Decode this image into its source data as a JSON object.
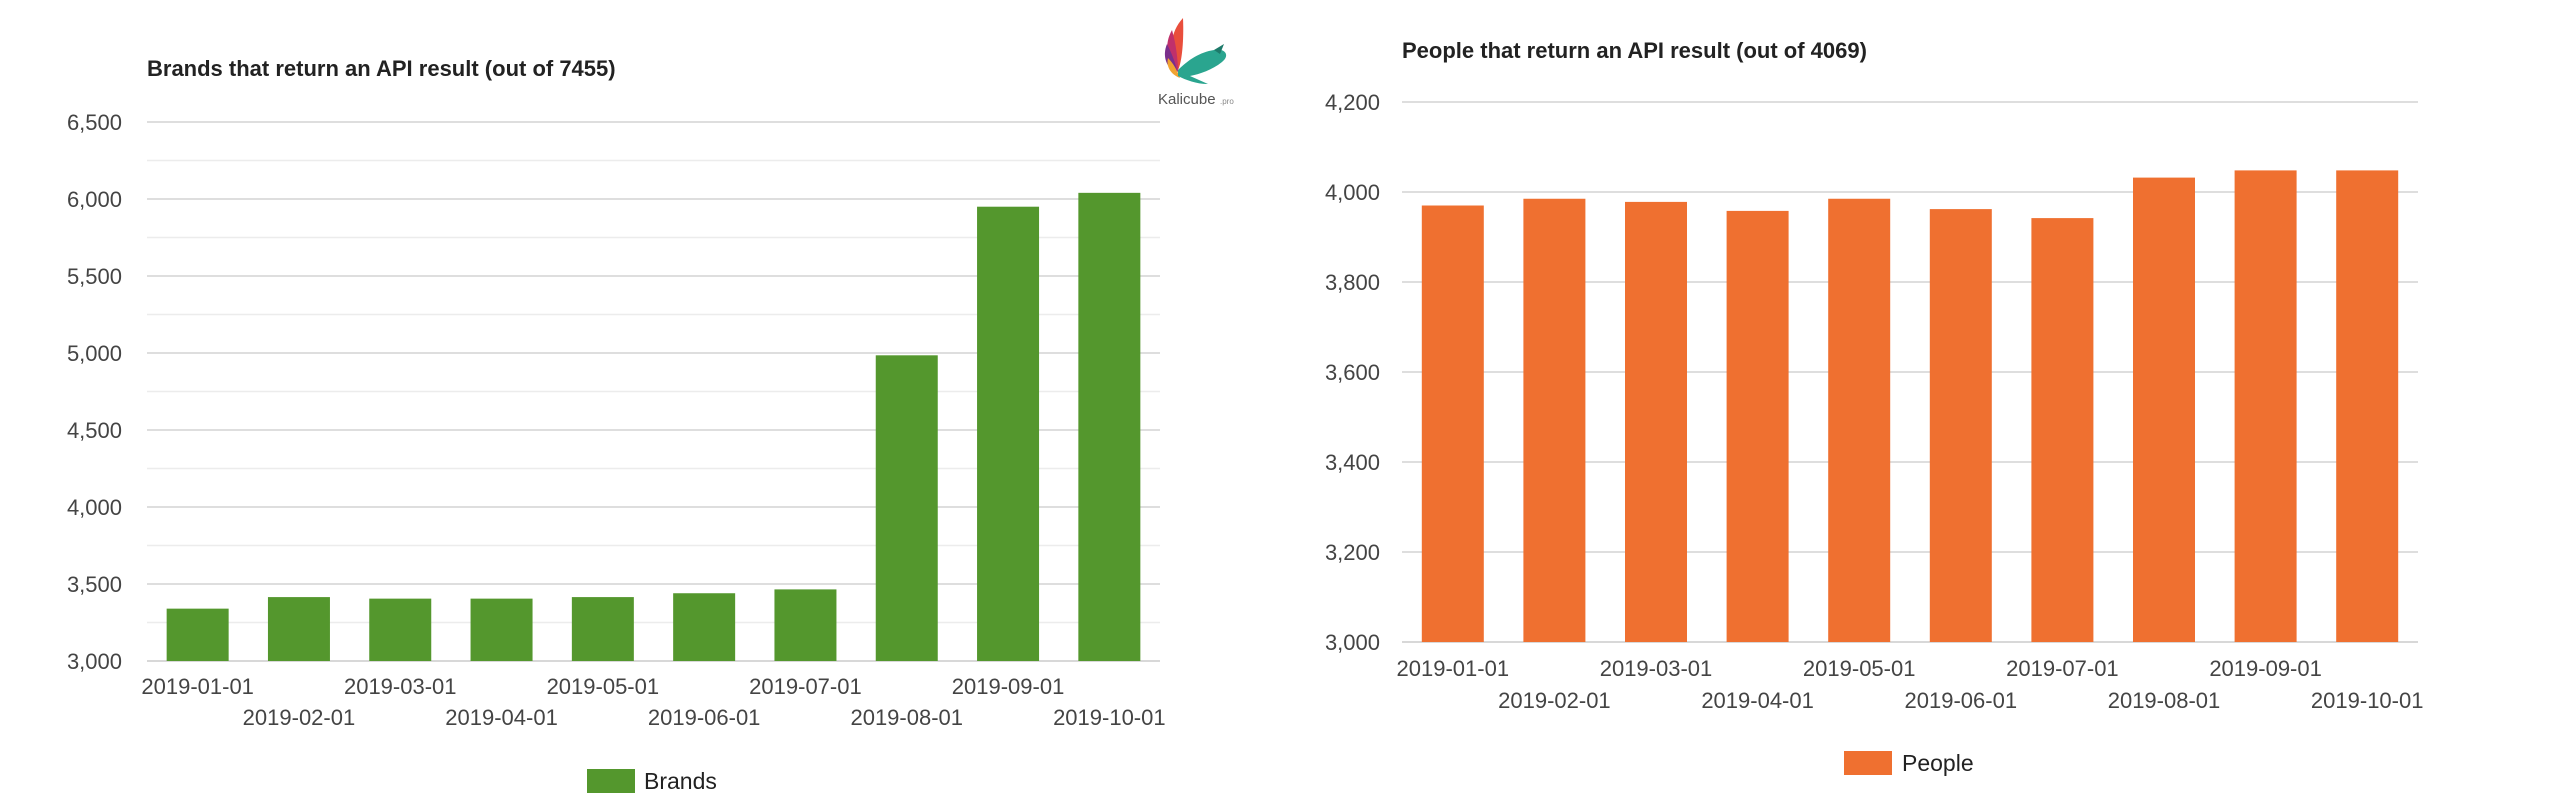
{
  "logo": {
    "name": "Kalicube",
    "suffix": ".pro"
  },
  "chart_data": [
    {
      "type": "bar",
      "title": "Brands that return an API result (out of 7455)",
      "xlabel": "",
      "ylabel": "",
      "categories": [
        "2019-01-01",
        "2019-02-01",
        "2019-03-01",
        "2019-04-01",
        "2019-05-01",
        "2019-06-01",
        "2019-07-01",
        "2019-08-01",
        "2019-09-01",
        "2019-10-01"
      ],
      "series": [
        {
          "name": "Brands",
          "color": "#54972d",
          "values": [
            3340,
            3415,
            3405,
            3405,
            3415,
            3440,
            3465,
            4985,
            5950,
            6040
          ]
        }
      ],
      "ylim": [
        3000,
        6500
      ],
      "yticks": [
        3000,
        3500,
        4000,
        4500,
        5000,
        5500,
        6000,
        6500
      ],
      "ytick_labels": [
        "3,000",
        "3,500",
        "4,000",
        "4,500",
        "5,000",
        "5,500",
        "6,000",
        "6,500"
      ],
      "minor_grid": true,
      "grid": true,
      "legend": "bottom"
    },
    {
      "type": "bar",
      "title": "People that return an API result (out of 4069)",
      "xlabel": "",
      "ylabel": "",
      "categories": [
        "2019-01-01",
        "2019-02-01",
        "2019-03-01",
        "2019-04-01",
        "2019-05-01",
        "2019-06-01",
        "2019-07-01",
        "2019-08-01",
        "2019-09-01",
        "2019-10-01"
      ],
      "series": [
        {
          "name": "People",
          "color": "#ef7030",
          "values": [
            3970,
            3985,
            3978,
            3958,
            3985,
            3962,
            3942,
            4032,
            4048,
            4048
          ]
        }
      ],
      "ylim": [
        3000,
        4200
      ],
      "yticks": [
        3000,
        3200,
        3400,
        3600,
        3800,
        4000,
        4200
      ],
      "ytick_labels": [
        "3,000",
        "3,200",
        "3,400",
        "3,600",
        "3,800",
        "4,000",
        "4,200"
      ],
      "minor_grid": false,
      "grid": true,
      "legend": "bottom"
    }
  ]
}
